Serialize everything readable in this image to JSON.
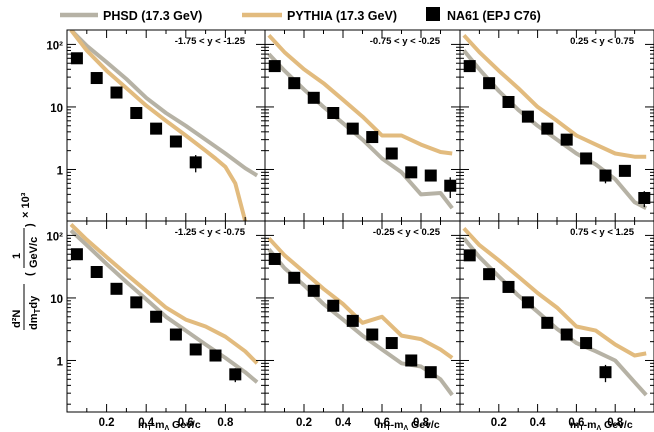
{
  "legend": [
    {
      "key": "phsd",
      "label": "PHSD (17.3 GeV)",
      "color": "#b6b2a5",
      "marker": "line"
    },
    {
      "key": "pythia",
      "label": "PYTHIA (17.3 GeV)",
      "color": "#e2bb7e",
      "marker": "line"
    },
    {
      "key": "na61",
      "label": "NA61 (EPJ C76)",
      "color": "#000000",
      "marker": "square"
    }
  ],
  "axes": {
    "xlabel_main": "m",
    "xlabel_sub1": "T",
    "xlabel_mid": "-m",
    "xlabel_sub2": "Λ",
    "xlabel_unit": " Gev/c",
    "ylabel_num": "d²N",
    "ylabel_den": "dm",
    "ylabel_den_sub": "T",
    "ylabel_den_tail": "dy",
    "ylabel_frac_num": "1",
    "ylabel_frac_den": "GeV/c",
    "ylabel_factor": "× 10³",
    "x_ticks": [
      "0.2",
      "0.4",
      "0.6",
      "0.8"
    ],
    "y_ticks_top": [
      "10²",
      "10",
      "1"
    ],
    "y_ticks_bottom": [
      "10²",
      "10",
      "1"
    ]
  },
  "chart_data": [
    {
      "type": "line",
      "panel": "top-left",
      "range_label": "-1.75 < y < -1.25",
      "xlim": [
        0,
        1.0
      ],
      "ylim": [
        0.15,
        170
      ],
      "yscale": "log",
      "series": [
        {
          "key": "phsd",
          "x": [
            0.02,
            0.1,
            0.2,
            0.3,
            0.4,
            0.5,
            0.6,
            0.7,
            0.8,
            0.9,
            0.96
          ],
          "y": [
            170,
            95,
            52,
            28,
            14,
            8,
            5,
            3,
            1.8,
            1.05,
            0.8
          ]
        },
        {
          "key": "pythia",
          "x": [
            0.02,
            0.1,
            0.2,
            0.3,
            0.4,
            0.5,
            0.6,
            0.7,
            0.75,
            0.8,
            0.85,
            0.9
          ],
          "y": [
            170,
            80,
            38,
            20,
            10.5,
            6,
            3.5,
            2,
            1.5,
            1.1,
            0.6,
            0.15
          ]
        },
        {
          "key": "na61",
          "x": [
            0.05,
            0.15,
            0.25,
            0.35,
            0.45,
            0.55,
            0.65
          ],
          "y": [
            60,
            29,
            17,
            8,
            4.5,
            2.8,
            1.3
          ],
          "yerr": [
            0,
            0,
            0,
            0,
            0.5,
            0.5,
            0.4
          ]
        }
      ]
    },
    {
      "type": "line",
      "panel": "top-center",
      "range_label": "-0.75 < y < -0.25",
      "xlim": [
        0,
        1.0
      ],
      "ylim": [
        0.15,
        170
      ],
      "yscale": "log",
      "series": [
        {
          "key": "phsd",
          "x": [
            0.02,
            0.1,
            0.2,
            0.3,
            0.4,
            0.5,
            0.6,
            0.7,
            0.8,
            0.9,
            0.96
          ],
          "y": [
            70,
            38,
            19,
            10,
            5.5,
            3,
            1.5,
            0.9,
            0.4,
            0.42,
            0.24
          ]
        },
        {
          "key": "pythia",
          "x": [
            0.02,
            0.1,
            0.2,
            0.3,
            0.4,
            0.5,
            0.6,
            0.7,
            0.8,
            0.9,
            0.96
          ],
          "y": [
            140,
            75,
            40,
            24,
            13,
            7,
            3.5,
            3.5,
            2.5,
            1.9,
            1.8
          ]
        },
        {
          "key": "na61",
          "x": [
            0.05,
            0.15,
            0.25,
            0.35,
            0.45,
            0.55,
            0.65,
            0.75,
            0.85,
            0.95
          ],
          "y": [
            45,
            24,
            14,
            8,
            4.5,
            3.3,
            1.8,
            0.9,
            0.8,
            0.55
          ],
          "yerr": [
            0,
            0,
            0,
            0,
            0,
            0,
            0,
            0,
            0.15,
            0.2
          ]
        }
      ]
    },
    {
      "type": "line",
      "panel": "top-right",
      "range_label": "0.25 < y <  0.75",
      "xlim": [
        0,
        1.0
      ],
      "ylim": [
        0.15,
        170
      ],
      "yscale": "log",
      "series": [
        {
          "key": "phsd",
          "x": [
            0.02,
            0.1,
            0.2,
            0.3,
            0.4,
            0.5,
            0.6,
            0.7,
            0.8,
            0.9,
            0.96
          ],
          "y": [
            80,
            40,
            18,
            9,
            5,
            3,
            1.8,
            1.2,
            0.7,
            0.3,
            0.24
          ]
        },
        {
          "key": "pythia",
          "x": [
            0.02,
            0.1,
            0.2,
            0.3,
            0.4,
            0.5,
            0.6,
            0.7,
            0.8,
            0.9,
            0.96
          ],
          "y": [
            140,
            75,
            38,
            20,
            10,
            6,
            3.5,
            2.5,
            1.8,
            1.6,
            1.6
          ]
        },
        {
          "key": "na61",
          "x": [
            0.05,
            0.15,
            0.25,
            0.35,
            0.45,
            0.55,
            0.65,
            0.75,
            0.85,
            0.95
          ],
          "y": [
            45,
            24,
            12,
            7,
            4.5,
            3,
            1.5,
            0.8,
            0.95,
            0.35
          ],
          "yerr": [
            0,
            0,
            0,
            0,
            0,
            0,
            0,
            0.2,
            0.15,
            0.1
          ]
        }
      ]
    },
    {
      "type": "line",
      "panel": "bottom-left",
      "range_label": "-1.25 < y < -0.75",
      "xlim": [
        0,
        1.0
      ],
      "ylim": [
        0.15,
        170
      ],
      "yscale": "log",
      "series": [
        {
          "key": "phsd",
          "x": [
            0.02,
            0.1,
            0.2,
            0.3,
            0.4,
            0.5,
            0.6,
            0.7,
            0.8,
            0.9,
            0.96
          ],
          "y": [
            120,
            70,
            35,
            18,
            9.5,
            5,
            3,
            1.8,
            1.1,
            0.65,
            0.45
          ]
        },
        {
          "key": "pythia",
          "x": [
            0.02,
            0.1,
            0.2,
            0.3,
            0.4,
            0.5,
            0.6,
            0.7,
            0.8,
            0.9,
            0.96
          ],
          "y": [
            150,
            85,
            45,
            24,
            13,
            7,
            4.5,
            3.5,
            2.4,
            1.4,
            0.9
          ]
        },
        {
          "key": "na61",
          "x": [
            0.05,
            0.15,
            0.25,
            0.35,
            0.45,
            0.55,
            0.65,
            0.75,
            0.85
          ],
          "y": [
            50,
            26,
            14,
            8.5,
            5,
            2.6,
            1.5,
            1.2,
            0.6
          ],
          "yerr": [
            0,
            0,
            0,
            0,
            0,
            0,
            0,
            0,
            0.15
          ]
        }
      ]
    },
    {
      "type": "line",
      "panel": "bottom-center",
      "range_label": "-0.25 < y <  0.25",
      "xlim": [
        0,
        1.0
      ],
      "ylim": [
        0.15,
        170
      ],
      "yscale": "log",
      "series": [
        {
          "key": "phsd",
          "x": [
            0.02,
            0.1,
            0.2,
            0.3,
            0.4,
            0.5,
            0.6,
            0.7,
            0.8,
            0.9,
            0.96
          ],
          "y": [
            60,
            30,
            16,
            8,
            4.5,
            2.5,
            1.5,
            0.9,
            0.8,
            0.5,
            0.28
          ]
        },
        {
          "key": "pythia",
          "x": [
            0.02,
            0.1,
            0.2,
            0.3,
            0.4,
            0.5,
            0.6,
            0.7,
            0.8,
            0.9,
            0.96
          ],
          "y": [
            90,
            48,
            26,
            14,
            8,
            4,
            5,
            2.5,
            2.2,
            1.5,
            1.1
          ]
        },
        {
          "key": "na61",
          "x": [
            0.05,
            0.15,
            0.25,
            0.35,
            0.45,
            0.55,
            0.65,
            0.75,
            0.85
          ],
          "y": [
            42,
            21,
            13,
            7.5,
            4.3,
            2.6,
            1.9,
            1.0,
            0.65
          ],
          "yerr": [
            0,
            0,
            0,
            0,
            0,
            0,
            0,
            0.15,
            0.12
          ]
        }
      ]
    },
    {
      "type": "line",
      "panel": "bottom-right",
      "range_label": "0.75 < y <  1.25",
      "xlim": [
        0,
        1.0
      ],
      "ylim": [
        0.15,
        170
      ],
      "yscale": "log",
      "series": [
        {
          "key": "phsd",
          "x": [
            0.02,
            0.1,
            0.2,
            0.3,
            0.4,
            0.5,
            0.6,
            0.7,
            0.8,
            0.9,
            0.96
          ],
          "y": [
            90,
            45,
            22,
            11,
            6,
            3.2,
            1.9,
            1.4,
            1,
            0.45,
            0.28
          ]
        },
        {
          "key": "pythia",
          "x": [
            0.02,
            0.1,
            0.2,
            0.3,
            0.4,
            0.5,
            0.6,
            0.7,
            0.8,
            0.9,
            0.96
          ],
          "y": [
            130,
            70,
            40,
            22,
            12,
            7,
            3.5,
            3,
            1.8,
            1.2,
            1.3
          ]
        },
        {
          "key": "na61",
          "x": [
            0.05,
            0.15,
            0.25,
            0.35,
            0.45,
            0.55,
            0.65,
            0.75
          ],
          "y": [
            48,
            24,
            15,
            8.5,
            4,
            2.6,
            1.9,
            0.65
          ],
          "yerr": [
            0,
            0,
            0,
            0,
            0,
            0,
            0,
            0.2
          ]
        }
      ]
    }
  ]
}
